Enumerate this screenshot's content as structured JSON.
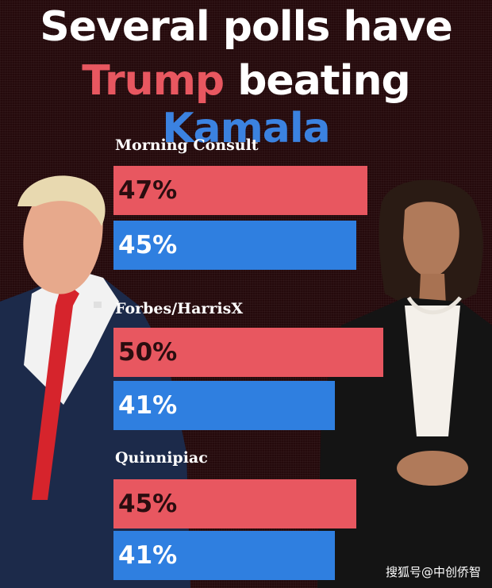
{
  "headline": {
    "line1": "Several polls have",
    "trump": "Trump",
    "beating": "beating",
    "kamala": "Kamala"
  },
  "colors": {
    "trump": "#e85760",
    "kamala": "#2f7fe0",
    "background": "#250a0c"
  },
  "chart_data": {
    "type": "bar",
    "orientation": "horizontal",
    "categories": [
      "Morning Consult",
      "Forbes/HarrisX",
      "Quinnipiac"
    ],
    "series": [
      {
        "values": [
          47,
          50,
          45
        ],
        "labels": [
          "47%",
          "50%",
          "45%"
        ],
        "color": "#e85760"
      },
      {
        "values": [
          45,
          41,
          41
        ],
        "labels": [
          "45%",
          "41%",
          "41%"
        ],
        "color": "#2f7fe0"
      }
    ],
    "unit": "%"
  },
  "watermark": "搜狐号@中创侨智"
}
